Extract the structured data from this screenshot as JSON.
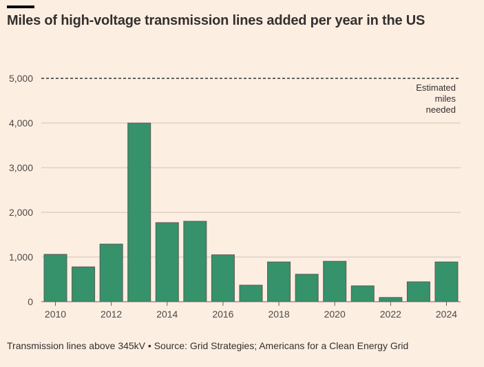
{
  "chart_data": {
    "type": "bar",
    "title": "Miles of high-voltage transmission lines added per year in the US",
    "categories": [
      "2010",
      "2011",
      "2012",
      "2013",
      "2014",
      "2015",
      "2016",
      "2017",
      "2018",
      "2019",
      "2020",
      "2021",
      "2022",
      "2023",
      "2024"
    ],
    "values": [
      1060,
      780,
      1290,
      4000,
      1770,
      1800,
      1050,
      370,
      890,
      615,
      905,
      355,
      95,
      445,
      890
    ],
    "x_tick_labels": [
      "2010",
      "2012",
      "2014",
      "2016",
      "2018",
      "2020",
      "2022",
      "2024"
    ],
    "y_tick_labels": [
      "0",
      "1,000",
      "2,000",
      "3,000",
      "4,000",
      "5,000"
    ],
    "ylim": [
      0,
      5000
    ],
    "grid": true,
    "reference_line": {
      "value": 5000,
      "label": [
        "Estimated",
        "miles",
        "needed"
      ],
      "style": "dashed"
    },
    "bar_color": "#35926a",
    "xlabel": "",
    "ylabel": ""
  },
  "footer": "Transmission lines above 345kV • Source: Grid Strategies; Americans for a Clean Energy Grid"
}
